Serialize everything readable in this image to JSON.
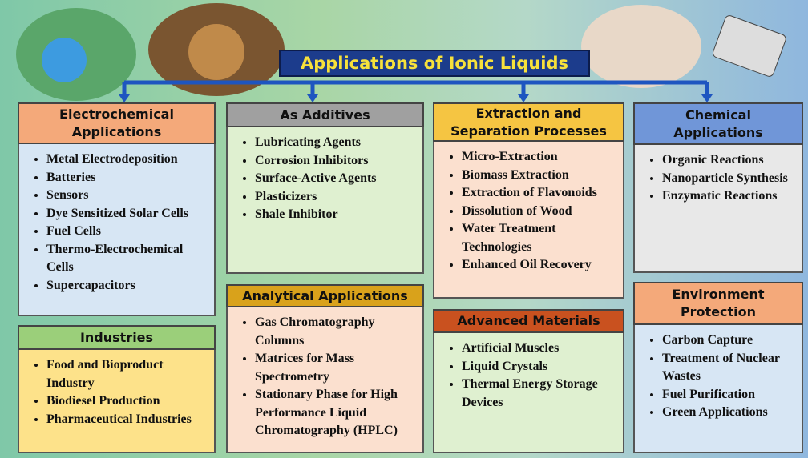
{
  "title": "Applications of Ionic Liquids",
  "boxes": [
    {
      "title": "Electrochemical Applications",
      "items": [
        "Metal Electrodeposition",
        "Batteries",
        "Sensors",
        "Dye Sensitized Solar Cells",
        "Fuel Cells",
        "Thermo-Electrochemical Cells",
        "Supercapacitors"
      ]
    },
    {
      "title": "Industries",
      "items": [
        "Food and Bioproduct Industry",
        "Biodiesel Production",
        "Pharmaceutical Industries"
      ]
    },
    {
      "title": "As Additives",
      "items": [
        "Lubricating Agents",
        "Corrosion Inhibitors",
        "Surface-Active Agents",
        "Plasticizers",
        "Shale Inhibitor"
      ]
    },
    {
      "title": "Analytical Applications",
      "items": [
        "Gas Chromatography Columns",
        "Matrices for Mass Spectrometry",
        "Stationary Phase for High Performance Liquid Chromatography (HPLC)"
      ]
    },
    {
      "title": "Extraction and Separation Processes",
      "items": [
        "Micro-Extraction",
        "Biomass Extraction",
        "Extraction of Flavonoids",
        "Dissolution of Wood",
        "Water Treatment Technologies",
        "Enhanced Oil Recovery"
      ]
    },
    {
      "title": "Advanced Materials",
      "items": [
        "Artificial Muscles",
        "Liquid Crystals",
        "Thermal Energy Storage Devices"
      ]
    },
    {
      "title": "Chemical Applications",
      "items": [
        "Organic Reactions",
        "Nanoparticle Synthesis",
        "Enzymatic Reactions"
      ]
    },
    {
      "title": "Environment Protection",
      "items": [
        "Carbon Capture",
        "Treatment of Nuclear Wastes",
        "Fuel Purification",
        "Green Applications"
      ]
    }
  ]
}
